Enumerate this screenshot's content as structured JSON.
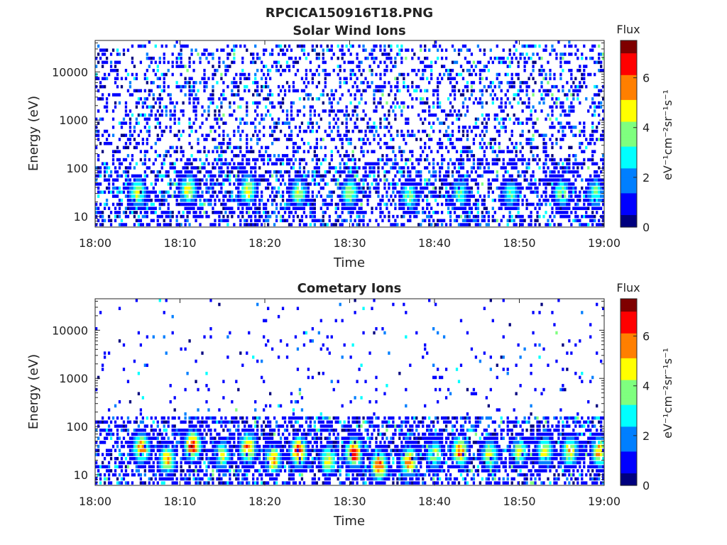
{
  "figure": {
    "title": "RPCICA150916T18.PNG"
  },
  "colormap": [
    "#00007f",
    "#0000ff",
    "#007fff",
    "#00ffff",
    "#7fff7f",
    "#ffff00",
    "#ff7f00",
    "#ff0000",
    "#7f0000"
  ],
  "chart_data": [
    {
      "type": "heatmap",
      "title": "Solar Wind Ions",
      "xlabel": "Time",
      "ylabel": "Energy (eV)",
      "x_ticks": [
        "18:00",
        "18:10",
        "18:20",
        "18:30",
        "18:40",
        "18:50",
        "19:00"
      ],
      "x_range": [
        "18:00",
        "19:00"
      ],
      "y_scale": "log",
      "y_ticks": [
        10,
        100,
        1000,
        10000
      ],
      "y_tick_labels": [
        "10",
        "100",
        "1000",
        "10000"
      ],
      "y_range": [
        6,
        45000
      ],
      "colorbar": {
        "title": "Flux",
        "label": "eV⁻¹cm⁻²sr⁻¹s⁻¹",
        "range": [
          0,
          7.5
        ],
        "ticks": [
          0,
          2,
          4,
          6
        ],
        "tick_labels": [
          "0",
          "2",
          "4",
          "6"
        ]
      },
      "peaks": [
        {
          "time": "18:05",
          "energy": 30,
          "flux": 4.5
        },
        {
          "time": "18:11",
          "energy": 35,
          "flux": 5
        },
        {
          "time": "18:18",
          "energy": 35,
          "flux": 5
        },
        {
          "time": "18:24",
          "energy": 30,
          "flux": 4.5
        },
        {
          "time": "18:30",
          "energy": 30,
          "flux": 4.5
        },
        {
          "time": "18:37",
          "energy": 25,
          "flux": 4
        },
        {
          "time": "18:43",
          "energy": 30,
          "flux": 4
        },
        {
          "time": "18:49",
          "energy": 30,
          "flux": 3.5
        },
        {
          "time": "18:55",
          "energy": 30,
          "flux": 4
        },
        {
          "time": "18:59",
          "energy": 30,
          "flux": 4
        }
      ]
    },
    {
      "type": "heatmap",
      "title": "Cometary Ions",
      "xlabel": "Time",
      "ylabel": "Energy (eV)",
      "x_ticks": [
        "18:00",
        "18:10",
        "18:20",
        "18:30",
        "18:40",
        "18:50",
        "19:00"
      ],
      "x_range": [
        "18:00",
        "19:00"
      ],
      "y_scale": "log",
      "y_ticks": [
        10,
        100,
        1000,
        10000
      ],
      "y_tick_labels": [
        "10",
        "100",
        "1000",
        "10000"
      ],
      "y_range": [
        6,
        45000
      ],
      "colorbar": {
        "title": "Flux",
        "label": "eV⁻¹cm⁻²sr⁻¹s⁻¹",
        "range": [
          0,
          7.5
        ],
        "ticks": [
          0,
          2,
          4,
          6
        ],
        "tick_labels": [
          "0",
          "2",
          "4",
          "6"
        ]
      },
      "peaks": [
        {
          "time": "18:05.5",
          "energy": 35,
          "flux": 6.5
        },
        {
          "time": "18:08.5",
          "energy": 20,
          "flux": 5.5
        },
        {
          "time": "18:11.5",
          "energy": 40,
          "flux": 7
        },
        {
          "time": "18:15",
          "energy": 25,
          "flux": 4.5
        },
        {
          "time": "18:18",
          "energy": 35,
          "flux": 6.5
        },
        {
          "time": "18:21",
          "energy": 20,
          "flux": 5.5
        },
        {
          "time": "18:24",
          "energy": 30,
          "flux": 7
        },
        {
          "time": "18:27.5",
          "energy": 20,
          "flux": 5
        },
        {
          "time": "18:30.5",
          "energy": 28,
          "flux": 7
        },
        {
          "time": "18:33.5",
          "energy": 15,
          "flux": 6.5
        },
        {
          "time": "18:37",
          "energy": 18,
          "flux": 6
        },
        {
          "time": "18:40",
          "energy": 25,
          "flux": 4.5
        },
        {
          "time": "18:43",
          "energy": 30,
          "flux": 6
        },
        {
          "time": "18:46.5",
          "energy": 25,
          "flux": 5
        },
        {
          "time": "18:50",
          "energy": 30,
          "flux": 4.5
        },
        {
          "time": "18:53",
          "energy": 30,
          "flux": 5
        },
        {
          "time": "18:56",
          "energy": 30,
          "flux": 5.5
        },
        {
          "time": "18:59.5",
          "energy": 30,
          "flux": 6
        }
      ]
    }
  ]
}
